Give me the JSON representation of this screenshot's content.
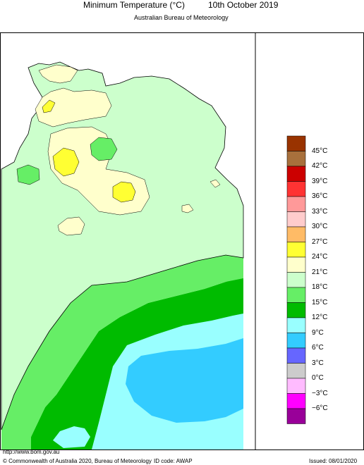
{
  "header": {
    "title": "Minimum Temperature (°C)",
    "date": "10th October 2019",
    "agency": "Australian Bureau of Meteorology"
  },
  "legend": {
    "entries": [
      {
        "label": "45°C",
        "color": "#993300"
      },
      {
        "label": "42°C",
        "color": "#a8703c"
      },
      {
        "label": "39°C",
        "color": "#cc0000"
      },
      {
        "label": "36°C",
        "color": "#ff3333"
      },
      {
        "label": "33°C",
        "color": "#ff9999"
      },
      {
        "label": "30°C",
        "color": "#ffcccc"
      },
      {
        "label": "27°C",
        "color": "#ffbb66"
      },
      {
        "label": "24°C",
        "color": "#ffff33"
      },
      {
        "label": "21°C",
        "color": "#ffffcc"
      },
      {
        "label": "18°C",
        "color": "#ccffcc"
      },
      {
        "label": "15°C",
        "color": "#66ee66"
      },
      {
        "label": "12°C",
        "color": "#00bb00"
      },
      {
        "label": "9°C",
        "color": "#99ffff"
      },
      {
        "label": "6°C",
        "color": "#33ccff"
      },
      {
        "label": "3°C",
        "color": "#6666ff"
      },
      {
        "label": "0°C",
        "color": "#cccccc"
      },
      {
        "label": "−3°C",
        "color": "#ffbbff"
      },
      {
        "label": "−6°C",
        "color": "#ff00ff"
      },
      {
        "label": "",
        "color": "#990099"
      }
    ]
  },
  "footer": {
    "url": "http://www.bom.gov.au",
    "copyright": "© Commonwealth of Australia 2020, Bureau of Meteorology",
    "id_code": "ID code: AWAP",
    "issued": "Issued: 08/01/2020"
  }
}
